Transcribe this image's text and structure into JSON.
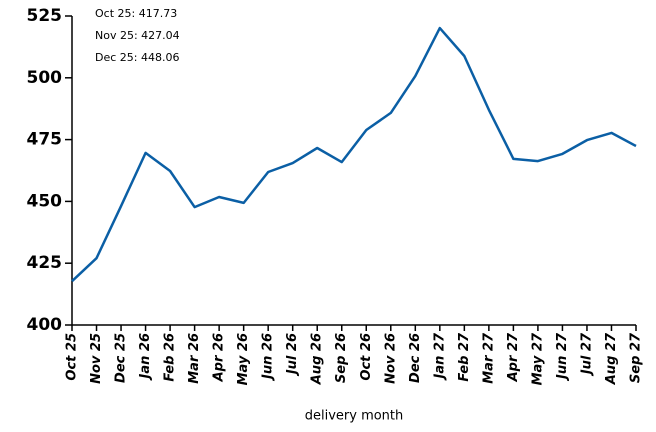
{
  "chart_data": {
    "type": "line",
    "x_label": "delivery month",
    "annotations": [
      "Oct 25: 417.73",
      "Nov 25: 427.04",
      "Dec 25: 448.06"
    ],
    "categories": [
      "Oct 25",
      "Nov 25",
      "Dec 25",
      "Jan 26",
      "Feb 26",
      "Mar 26",
      "Apr 26",
      "May 26",
      "Jun 26",
      "Jul 26",
      "Aug 26",
      "Sep 26",
      "Oct 26",
      "Nov 26",
      "Dec 26",
      "Jan 27",
      "Feb 27",
      "Mar 27",
      "Apr 27",
      "May 27",
      "Jun 27",
      "Jul 27",
      "Aug 27",
      "Sep 27"
    ],
    "values": [
      417.73,
      427.04,
      448.06,
      469.6,
      462.3,
      447.7,
      451.8,
      449.4,
      461.9,
      465.5,
      471.6,
      465.9,
      478.9,
      485.8,
      500.7,
      520.1,
      508.8,
      487,
      467.2,
      466.3,
      469.2,
      474.8,
      477.7,
      472.4
    ],
    "color": "#0b5fa5",
    "ylim": [
      400,
      525
    ],
    "yticks": [
      400,
      425,
      450,
      475,
      500,
      525
    ],
    "grid": false
  }
}
